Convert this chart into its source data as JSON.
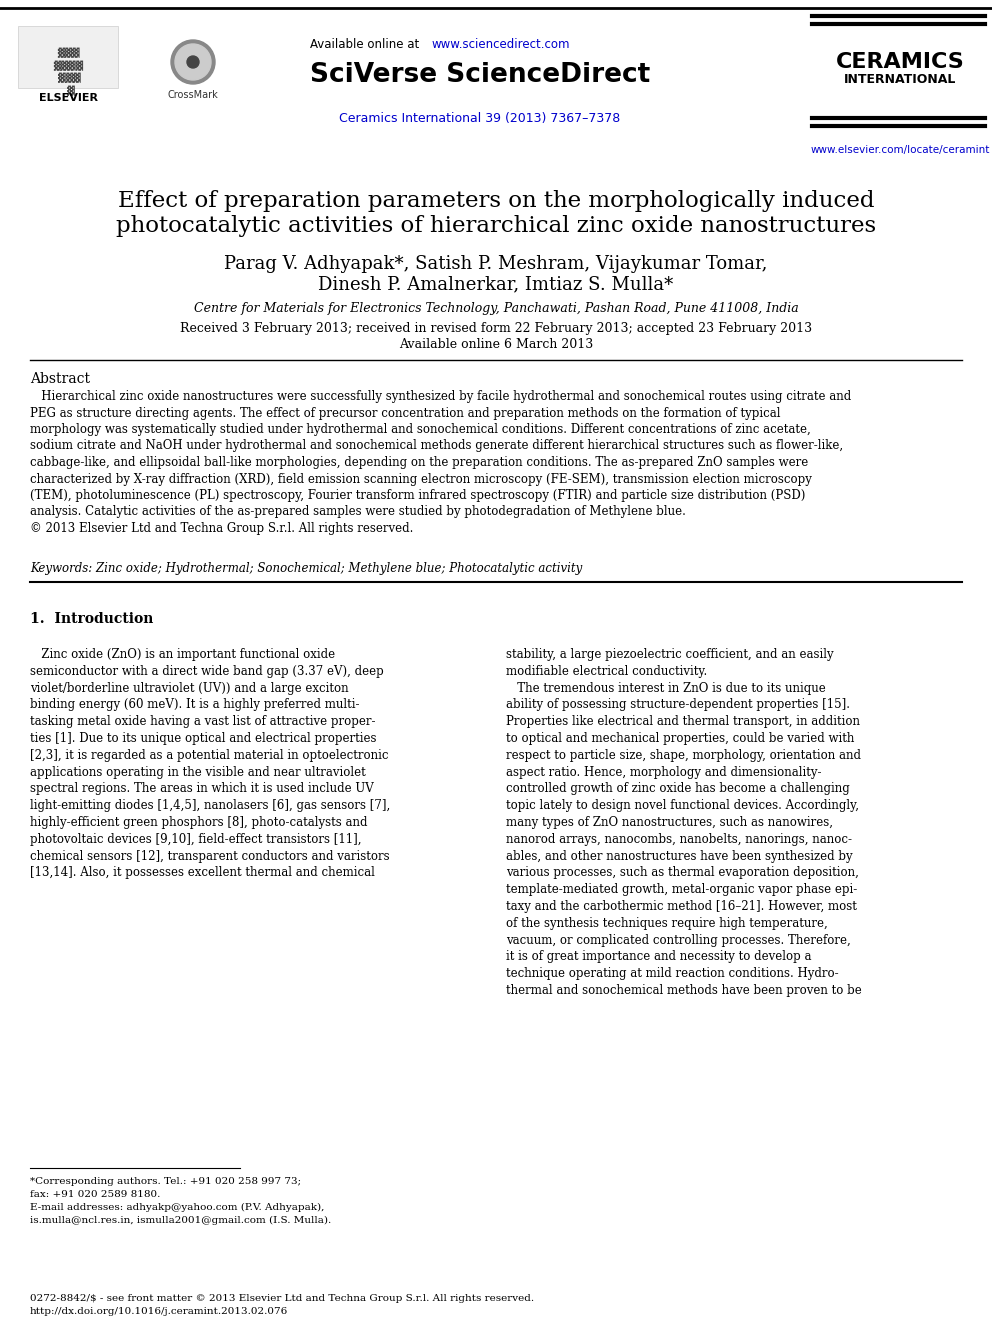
{
  "bg_color": "#ffffff",
  "header": {
    "available_online": "Available online at ",
    "available_online_url": "www.sciencedirect.com",
    "sciverse_text": "SciVerse ScienceDirect",
    "journal_name": "CERAMICS",
    "journal_sub": "INTERNATIONAL",
    "journal_url": "www.elsevier.com/locate/ceramint",
    "ceramics_int_text": "Ceramics International 39 (2013) 7367–7378",
    "ceramics_int_url_color": "#0000cc"
  },
  "title": {
    "line1": "Effect of preparation parameters on the morphologically induced",
    "line2": "photocatalytic activities of hierarchical zinc oxide nanostructures"
  },
  "authors": {
    "line1": "Parag V. Adhyapak*, Satish P. Meshram, Vijaykumar Tomar,",
    "line2": "Dinesh P. Amalnerkar, Imtiaz S. Mulla*"
  },
  "affiliation": "Centre for Materials for Electronics Technology, Panchawati, Pashan Road, Pune 411008, India",
  "dates": {
    "line1": "Received 3 February 2013; received in revised form 22 February 2013; accepted 23 February 2013",
    "line2": "Available online 6 March 2013"
  },
  "abstract_title": "Abstract",
  "abstract_text": "   Hierarchical zinc oxide nanostructures were successfully synthesized by facile hydrothermal and sonochemical routes using citrate and\nPEG as structure directing agents. The effect of precursor concentration and preparation methods on the formation of typical\nmorphology was systematically studied under hydrothermal and sonochemical conditions. Different concentrations of zinc acetate,\nsodium citrate and NaOH under hydrothermal and sonochemical methods generate different hierarchical structures such as flower-like,\ncabbage-like, and ellipsoidal ball-like morphologies, depending on the preparation conditions. The as-prepared ZnO samples were\ncharacterized by X-ray diffraction (XRD), field emission scanning electron microscopy (FE-SEM), transmission election microscopy\n(TEM), photoluminescence (PL) spectroscopy, Fourier transform infrared spectroscopy (FTIR) and particle size distribution (PSD)\nanalysis. Catalytic activities of the as-prepared samples were studied by photodegradation of Methylene blue.\n© 2013 Elsevier Ltd and Techna Group S.r.l. All rights reserved.",
  "keywords": "Keywords: Zinc oxide; Hydrothermal; Sonochemical; Methylene blue; Photocatalytic activity",
  "section1_title": "1.  Introduction",
  "intro_col1": "   Zinc oxide (ZnO) is an important functional oxide\nsemiconductor with a direct wide band gap (3.37 eV), deep\nviolet/borderline ultraviolet (UV)) and a large exciton\nbinding energy (60 meV). It is a highly preferred multi-\ntasking metal oxide having a vast list of attractive proper-\nties [1]. Due to its unique optical and electrical properties\n[2,3], it is regarded as a potential material in optoelectronic\napplications operating in the visible and near ultraviolet\nspectral regions. The areas in which it is used include UV\nlight-emitting diodes [1,4,5], nanolasers [6], gas sensors [7],\nhighly-efficient green phosphors [8], photo-catalysts and\nphotovoltaic devices [9,10], field-effect transistors [11],\nchemical sensors [12], transparent conductors and varistors\n[13,14]. Also, it possesses excellent thermal and chemical",
  "intro_col2": "stability, a large piezoelectric coefficient, and an easily\nmodifiable electrical conductivity.\n   The tremendous interest in ZnO is due to its unique\nability of possessing structure-dependent properties [15].\nProperties like electrical and thermal transport, in addition\nto optical and mechanical properties, could be varied with\nrespect to particle size, shape, morphology, orientation and\naspect ratio. Hence, morphology and dimensionality-\ncontrolled growth of zinc oxide has become a challenging\ntopic lately to design novel functional devices. Accordingly,\nmany types of ZnO nanostructures, such as nanowires,\nnanorod arrays, nanocombs, nanobelts, nanorings, nanoc-\nables, and other nanostructures have been synthesized by\nvarious processes, such as thermal evaporation deposition,\ntemplate-mediated growth, metal-organic vapor phase epi-\ntaxy and the carbothermic method [16–21]. However, most\nof the synthesis techniques require high temperature,\nvacuum, or complicated controlling processes. Therefore,\nit is of great importance and necessity to develop a\ntechnique operating at mild reaction conditions. Hydro-\nthermal and sonochemical methods have been proven to be",
  "footnote_line1": "*Corresponding authors. Tel.: +91 020 258 997 73;",
  "footnote_line2": "fax: +91 020 2589 8180.",
  "footnote_line3": "E-mail addresses: adhyakp@yahoo.com (P.V. Adhyapak),",
  "footnote_line4": "is.mulla@ncl.res.in, ismulla2001@gmail.com (I.S. Mulla).",
  "bottom_line1": "0272-8842/$ - see front matter © 2013 Elsevier Ltd and Techna Group S.r.l. All rights reserved.",
  "bottom_line2": "http://dx.doi.org/10.1016/j.ceramint.2013.02.076",
  "link_color": "#0000cc",
  "text_color": "#000000"
}
